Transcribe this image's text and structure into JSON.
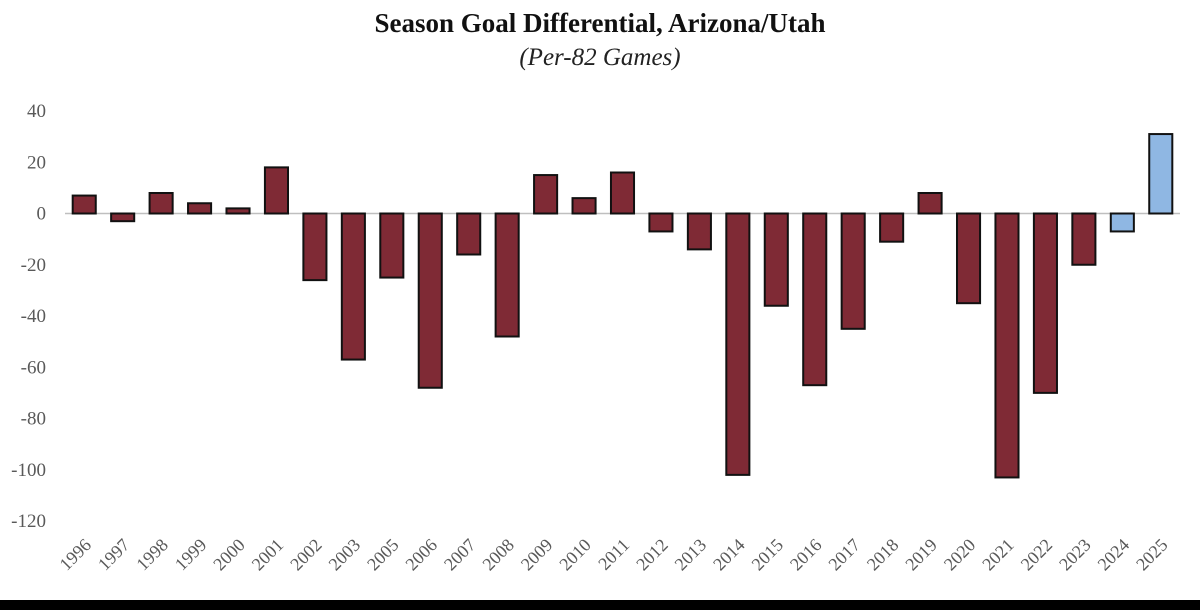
{
  "chart_data": {
    "type": "bar",
    "title": "Season Goal Differential, Arizona/Utah",
    "subtitle": "(Per-82 Games)",
    "xlabel": "",
    "ylabel": "",
    "ylim": [
      -120,
      40
    ],
    "yticks": [
      40,
      20,
      0,
      -20,
      -40,
      -60,
      -80,
      -100,
      -120
    ],
    "grid": false,
    "categories": [
      "1996",
      "1997",
      "1998",
      "1999",
      "2000",
      "2001",
      "2002",
      "2003",
      "2005",
      "2006",
      "2007",
      "2008",
      "2009",
      "2010",
      "2011",
      "2012",
      "2013",
      "2014",
      "2015",
      "2016",
      "2017",
      "2018",
      "2019",
      "2020",
      "2021",
      "2022",
      "2023",
      "2024",
      "2025"
    ],
    "values": [
      7,
      -3,
      8,
      4,
      2,
      18,
      -26,
      -57,
      -25,
      -68,
      -16,
      -48,
      15,
      6,
      16,
      -7,
      -14,
      -102,
      -36,
      -67,
      -45,
      -11,
      8,
      -35,
      -103,
      -70,
      -20,
      -7,
      31
    ],
    "highlight_categories": [
      "2024",
      "2025"
    ],
    "colors": {
      "bar": "#7f2a35",
      "highlight_bar": "#8fb7e3",
      "bar_edge": "#111111",
      "axis": "#bfbfbf",
      "tick_label": "#595959"
    }
  }
}
